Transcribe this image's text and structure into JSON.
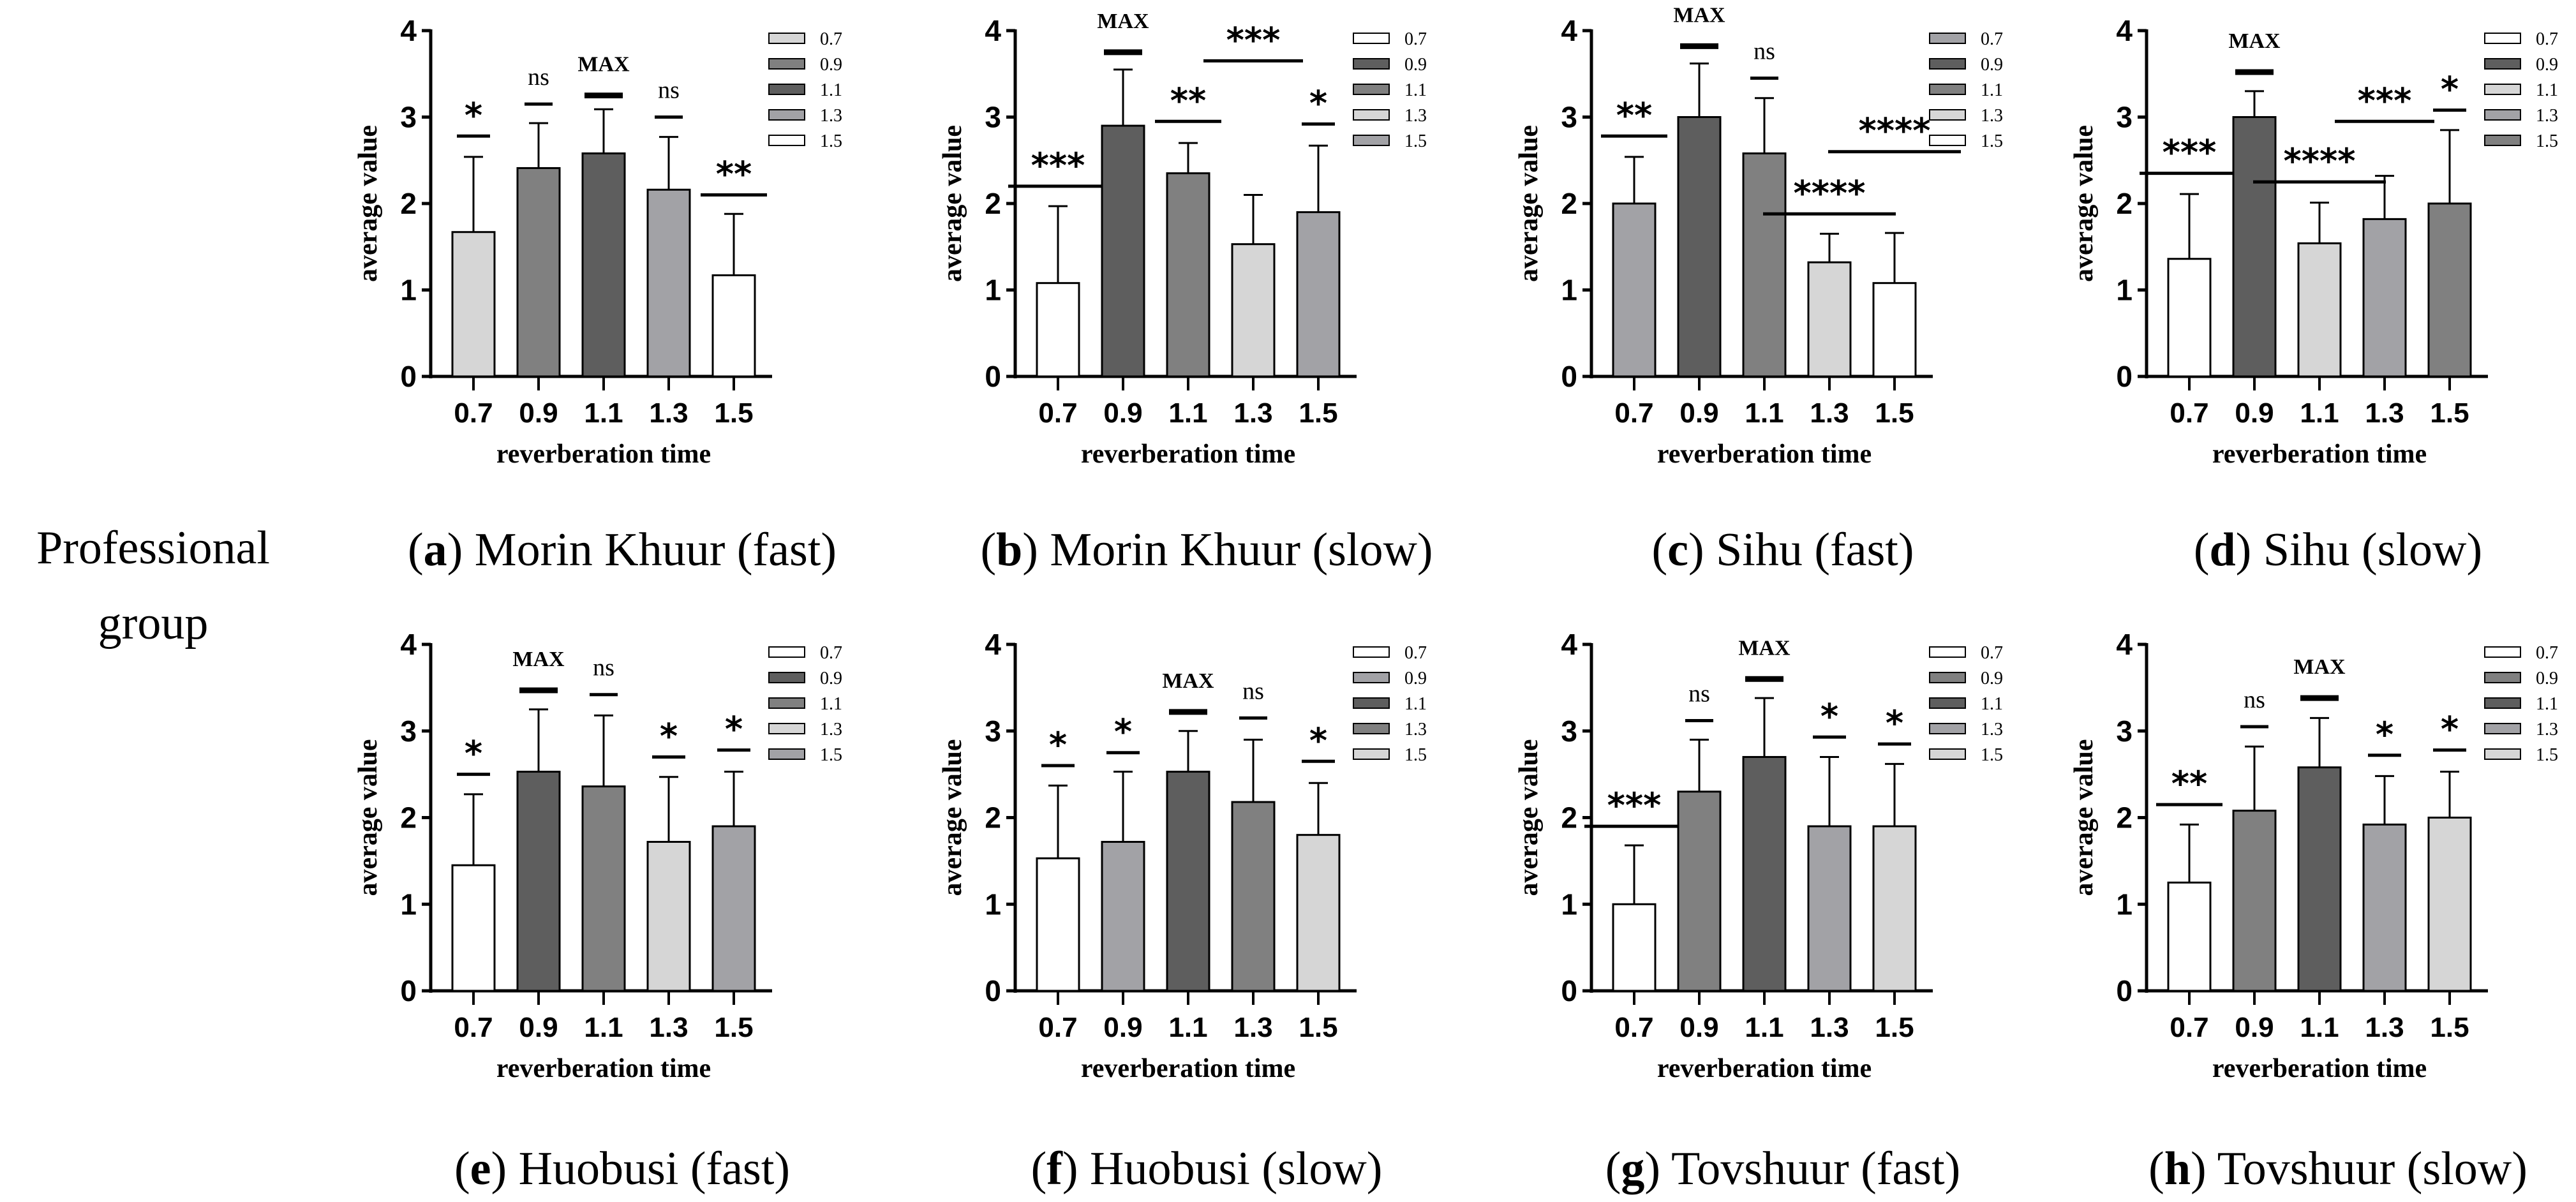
{
  "group_label": "Professional group",
  "colors": {
    "white": "#ffffff",
    "light": "#d6d6d6",
    "midlight": "#a2a2a6",
    "mid": "#808080",
    "dark": "#5e5e5e"
  },
  "chart_data": [
    {
      "type": "bar",
      "letter": "a",
      "caption": "Morin Khuur (fast)",
      "xlabel": "reverberation time",
      "ylabel": "average value",
      "ylim": [
        0,
        4
      ],
      "yticks": [
        0,
        1,
        2,
        3,
        4
      ],
      "categories": [
        "0.7",
        "0.9",
        "1.1",
        "1.3",
        "1.5"
      ],
      "values": [
        1.67,
        2.41,
        2.58,
        2.16,
        1.17
      ],
      "error_upper": [
        2.54,
        2.93,
        3.09,
        2.77,
        1.88
      ],
      "fills": [
        "light",
        "mid",
        "dark",
        "midlight",
        "white"
      ],
      "annotations": [
        {
          "label": "*",
          "level": 2.78
        },
        {
          "label": "ns",
          "level": 3.15
        },
        {
          "label": "MAX",
          "level": 3.25
        },
        {
          "label": "ns",
          "level": 3.0
        },
        {
          "label": "**",
          "level": 2.1
        }
      ],
      "legend": [
        "0.7",
        "0.9",
        "1.1",
        "1.3",
        "1.5"
      ]
    },
    {
      "type": "bar",
      "letter": "b",
      "caption": "Morin Khuur (slow)",
      "xlabel": "reverberation time",
      "ylabel": "average value",
      "ylim": [
        0,
        4
      ],
      "yticks": [
        0,
        1,
        2,
        3,
        4
      ],
      "categories": [
        "0.7",
        "0.9",
        "1.1",
        "1.3",
        "1.5"
      ],
      "values": [
        1.08,
        2.9,
        2.35,
        1.53,
        1.9
      ],
      "error_upper": [
        1.97,
        3.55,
        2.7,
        2.1,
        2.67
      ],
      "fills": [
        "white",
        "dark",
        "mid",
        "light",
        "midlight"
      ],
      "annotations": [
        {
          "label": "***",
          "level": 2.2
        },
        {
          "label": "MAX",
          "level": 3.75
        },
        {
          "label": "**",
          "level": 2.95
        },
        {
          "label": "***",
          "level": 3.65
        },
        {
          "label": "*",
          "level": 2.92
        }
      ],
      "legend": [
        "0.7",
        "0.9",
        "1.1",
        "1.3",
        "1.5"
      ]
    },
    {
      "type": "bar",
      "letter": "c",
      "caption": "Sihu (fast)",
      "xlabel": "reverberation time",
      "ylabel": "average value",
      "ylim": [
        0,
        4
      ],
      "yticks": [
        0,
        1,
        2,
        3,
        4
      ],
      "categories": [
        "0.7",
        "0.9",
        "1.1",
        "1.3",
        "1.5"
      ],
      "values": [
        2.0,
        3.0,
        2.58,
        1.32,
        1.08
      ],
      "error_upper": [
        2.54,
        3.62,
        3.22,
        1.65,
        1.66
      ],
      "fills": [
        "midlight",
        "dark",
        "mid",
        "light",
        "white"
      ],
      "annotations": [
        {
          "label": "**",
          "level": 2.78
        },
        {
          "label": "MAX",
          "level": 3.82
        },
        {
          "label": "ns",
          "level": 3.45
        },
        {
          "label": "****",
          "level": 1.88
        },
        {
          "label": "****",
          "level": 2.6
        }
      ],
      "legend": [
        "0.7",
        "0.9",
        "1.1",
        "1.3",
        "1.5"
      ]
    },
    {
      "type": "bar",
      "letter": "d",
      "caption": "Sihu (slow)",
      "xlabel": "reverberation time",
      "ylabel": "average value",
      "ylim": [
        0,
        4
      ],
      "yticks": [
        0,
        1,
        2,
        3,
        4
      ],
      "categories": [
        "0.7",
        "0.9",
        "1.1",
        "1.3",
        "1.5"
      ],
      "values": [
        1.36,
        3.0,
        1.54,
        1.82,
        2.0
      ],
      "error_upper": [
        2.11,
        3.3,
        2.01,
        2.32,
        2.85
      ],
      "fills": [
        "white",
        "dark",
        "light",
        "midlight",
        "mid"
      ],
      "annotations": [
        {
          "label": "***",
          "level": 2.35
        },
        {
          "label": "MAX",
          "level": 3.52
        },
        {
          "label": "****",
          "level": 2.25
        },
        {
          "label": "***",
          "level": 2.95
        },
        {
          "label": "*",
          "level": 3.08
        }
      ],
      "legend": [
        "0.7",
        "0.9",
        "1.1",
        "1.3",
        "1.5"
      ]
    },
    {
      "type": "bar",
      "letter": "e",
      "caption": "Huobusi (fast)",
      "xlabel": "reverberation time",
      "ylabel": "average value",
      "ylim": [
        0,
        4
      ],
      "yticks": [
        0,
        1,
        2,
        3,
        4
      ],
      "categories": [
        "0.7",
        "0.9",
        "1.1",
        "1.3",
        "1.5"
      ],
      "values": [
        1.45,
        2.53,
        2.36,
        1.72,
        1.9
      ],
      "error_upper": [
        2.27,
        3.25,
        3.18,
        2.47,
        2.53
      ],
      "fills": [
        "white",
        "dark",
        "mid",
        "light",
        "midlight"
      ],
      "annotations": [
        {
          "label": "*",
          "level": 2.5
        },
        {
          "label": "MAX",
          "level": 3.47
        },
        {
          "label": "ns",
          "level": 3.42
        },
        {
          "label": "*",
          "level": 2.7
        },
        {
          "label": "*",
          "level": 2.78
        }
      ],
      "legend": [
        "0.7",
        "0.9",
        "1.1",
        "1.3",
        "1.5"
      ]
    },
    {
      "type": "bar",
      "letter": "f",
      "caption": "Huobusi (slow)",
      "xlabel": "reverberation time",
      "ylabel": "average value",
      "ylim": [
        0,
        4
      ],
      "yticks": [
        0,
        1,
        2,
        3,
        4
      ],
      "categories": [
        "0.7",
        "0.9",
        "1.1",
        "1.3",
        "1.5"
      ],
      "values": [
        1.53,
        1.72,
        2.53,
        2.18,
        1.8
      ],
      "error_upper": [
        2.37,
        2.53,
        3.0,
        2.9,
        2.4
      ],
      "fills": [
        "white",
        "midlight",
        "dark",
        "mid",
        "light"
      ],
      "annotations": [
        {
          "label": "*",
          "level": 2.6
        },
        {
          "label": "*",
          "level": 2.75
        },
        {
          "label": "MAX",
          "level": 3.22
        },
        {
          "label": "ns",
          "level": 3.15
        },
        {
          "label": "*",
          "level": 2.65
        }
      ],
      "legend": [
        "0.7",
        "0.9",
        "1.1",
        "1.3",
        "1.5"
      ]
    },
    {
      "type": "bar",
      "letter": "g",
      "caption": "Tovshuur (fast)",
      "xlabel": "reverberation time",
      "ylabel": "average value",
      "ylim": [
        0,
        4
      ],
      "yticks": [
        0,
        1,
        2,
        3,
        4
      ],
      "categories": [
        "0.7",
        "0.9",
        "1.1",
        "1.3",
        "1.5"
      ],
      "values": [
        1.0,
        2.3,
        2.7,
        1.9,
        1.9
      ],
      "error_upper": [
        1.68,
        2.9,
        3.38,
        2.7,
        2.62
      ],
      "fills": [
        "white",
        "mid",
        "dark",
        "midlight",
        "light"
      ],
      "annotations": [
        {
          "label": "***",
          "level": 1.9
        },
        {
          "label": "ns",
          "level": 3.12
        },
        {
          "label": "MAX",
          "level": 3.6
        },
        {
          "label": "*",
          "level": 2.93
        },
        {
          "label": "*",
          "level": 2.85
        }
      ],
      "legend": [
        "0.7",
        "0.9",
        "1.1",
        "1.3",
        "1.5"
      ]
    },
    {
      "type": "bar",
      "letter": "h",
      "caption": "Tovshuur (slow)",
      "xlabel": "reverberation time",
      "ylabel": "average value",
      "ylim": [
        0,
        4
      ],
      "yticks": [
        0,
        1,
        2,
        3,
        4
      ],
      "categories": [
        "0.7",
        "0.9",
        "1.1",
        "1.3",
        "1.5"
      ],
      "values": [
        1.25,
        2.08,
        2.58,
        1.92,
        2.0
      ],
      "error_upper": [
        1.92,
        2.82,
        3.15,
        2.48,
        2.53
      ],
      "fills": [
        "white",
        "mid",
        "dark",
        "midlight",
        "light"
      ],
      "annotations": [
        {
          "label": "**",
          "level": 2.15
        },
        {
          "label": "ns",
          "level": 3.05
        },
        {
          "label": "MAX",
          "level": 3.38
        },
        {
          "label": "*",
          "level": 2.72
        },
        {
          "label": "*",
          "level": 2.78
        }
      ],
      "legend": [
        "0.7",
        "0.9",
        "1.1",
        "1.3",
        "1.5"
      ]
    }
  ]
}
